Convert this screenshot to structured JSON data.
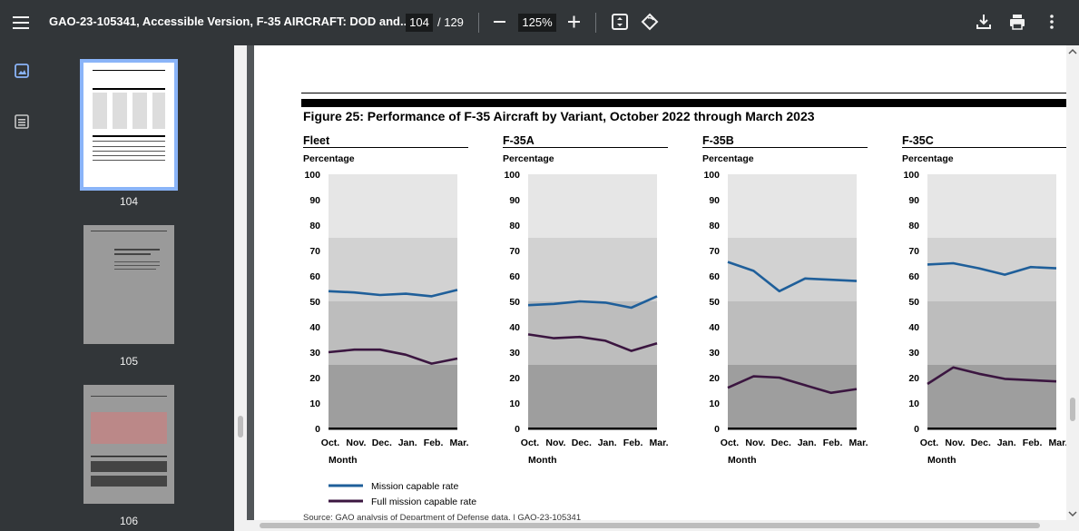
{
  "toolbar": {
    "title": "GAO-23-105341, Accessible Version, F-35 AIRCRAFT: DOD and...",
    "current_page": "104",
    "total_pages": "/ 129",
    "zoom": "125%"
  },
  "sidebar": {
    "thumbnails": [
      {
        "label": "104"
      },
      {
        "label": "105"
      },
      {
        "label": "106"
      }
    ]
  },
  "document": {
    "figure_title": "Figure 25: Performance of F-35 Aircraft by Variant, October 2022 through March 2023",
    "source": "Source: GAO analysis of Department of Defense data. | GAO-23-105341",
    "legend": {
      "mission": "Mission capable rate",
      "full": "Full mission capable rate"
    },
    "y_axis_label": "Percentage",
    "x_axis_label": "Month"
  },
  "colors": {
    "mission": "#1f5f9a",
    "full": "#3b1640",
    "band_top": "#e6e6e6",
    "band_mid1": "#d2d2d2",
    "band_mid2": "#bdbdbd",
    "band_low": "#9e9e9e"
  },
  "chart_data": [
    {
      "type": "line",
      "title": "Fleet",
      "ylabel": "Percentage",
      "xlabel": "Month",
      "categories": [
        "Oct.",
        "Nov.",
        "Dec.",
        "Jan.",
        "Feb.",
        "Mar."
      ],
      "yticks": [
        "0",
        "10",
        "20",
        "30",
        "40",
        "50",
        "60",
        "70",
        "80",
        "90",
        "100"
      ],
      "ylim": [
        0,
        100
      ],
      "series": [
        {
          "name": "Mission capable rate",
          "values": [
            54,
            53.5,
            52.5,
            53,
            52,
            54.5
          ]
        },
        {
          "name": "Full mission capable rate",
          "values": [
            30,
            31,
            31,
            29,
            25.5,
            27.5
          ]
        }
      ]
    },
    {
      "type": "line",
      "title": "F-35A",
      "ylabel": "Percentage",
      "xlabel": "Month",
      "categories": [
        "Oct.",
        "Nov.",
        "Dec.",
        "Jan.",
        "Feb.",
        "Mar."
      ],
      "yticks": [
        "0",
        "10",
        "20",
        "30",
        "40",
        "50",
        "60",
        "70",
        "80",
        "90",
        "100"
      ],
      "ylim": [
        0,
        100
      ],
      "series": [
        {
          "name": "Mission capable rate",
          "values": [
            48.5,
            49,
            50,
            49.5,
            47.5,
            52
          ]
        },
        {
          "name": "Full mission capable rate",
          "values": [
            37,
            35.5,
            36,
            34.5,
            30.5,
            33.5
          ]
        }
      ]
    },
    {
      "type": "line",
      "title": "F-35B",
      "ylabel": "Percentage",
      "xlabel": "Month",
      "categories": [
        "Oct.",
        "Nov.",
        "Dec.",
        "Jan.",
        "Feb.",
        "Mar."
      ],
      "yticks": [
        "0",
        "10",
        "20",
        "30",
        "40",
        "50",
        "60",
        "70",
        "80",
        "90",
        "100"
      ],
      "ylim": [
        0,
        100
      ],
      "series": [
        {
          "name": "Mission capable rate",
          "values": [
            65.5,
            62,
            54,
            59,
            58.5,
            58
          ]
        },
        {
          "name": "Full mission capable rate",
          "values": [
            16,
            20.5,
            20,
            17,
            14,
            15.5
          ]
        }
      ]
    },
    {
      "type": "line",
      "title": "F-35C",
      "ylabel": "Percentage",
      "xlabel": "Month",
      "categories": [
        "Oct.",
        "Nov.",
        "Dec.",
        "Jan.",
        "Feb.",
        "Mar."
      ],
      "yticks": [
        "0",
        "10",
        "20",
        "30",
        "40",
        "50",
        "60",
        "70",
        "80",
        "90",
        "100"
      ],
      "ylim": [
        0,
        100
      ],
      "series": [
        {
          "name": "Mission capable rate",
          "values": [
            64.5,
            65,
            63,
            60.5,
            63.5,
            63
          ]
        },
        {
          "name": "Full mission capable rate",
          "values": [
            17.5,
            24,
            21.5,
            19.5,
            19,
            18.5
          ]
        }
      ]
    }
  ]
}
